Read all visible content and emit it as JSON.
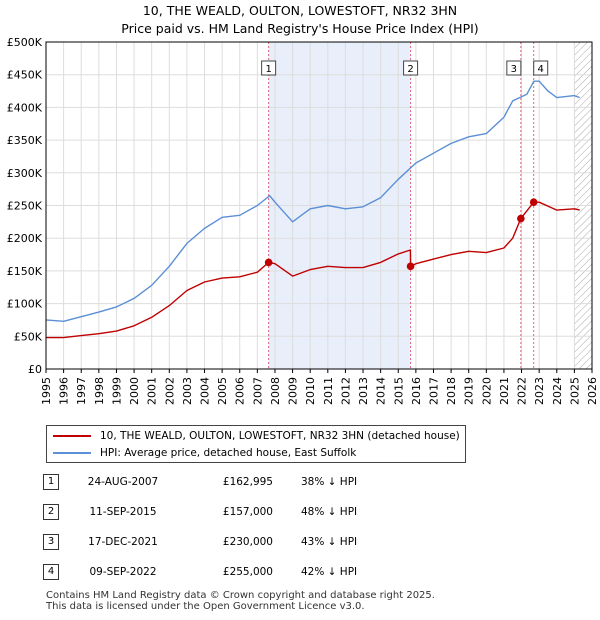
{
  "chart_data": {
    "type": "line",
    "title": "10, THE WEALD, OULTON, LOWESTOFT, NR32 3HN",
    "subtitle": "Price paid vs. HM Land Registry's House Price Index (HPI)",
    "xlim": [
      1995,
      2026
    ],
    "ylim": [
      0,
      500000
    ],
    "x_ticks": [
      "1995",
      "1996",
      "1997",
      "1998",
      "1999",
      "2000",
      "2001",
      "2002",
      "2003",
      "2004",
      "2005",
      "2006",
      "2007",
      "2008",
      "2009",
      "2010",
      "2011",
      "2012",
      "2013",
      "2014",
      "2015",
      "2016",
      "2017",
      "2018",
      "2019",
      "2020",
      "2021",
      "2022",
      "2023",
      "2024",
      "2025",
      "2026"
    ],
    "y_ticks": [
      {
        "value": 0,
        "label": "£0"
      },
      {
        "value": 50000,
        "label": "£50K"
      },
      {
        "value": 100000,
        "label": "£100K"
      },
      {
        "value": 150000,
        "label": "£150K"
      },
      {
        "value": 200000,
        "label": "£200K"
      },
      {
        "value": 250000,
        "label": "£250K"
      },
      {
        "value": 300000,
        "label": "£300K"
      },
      {
        "value": 350000,
        "label": "£350K"
      },
      {
        "value": 400000,
        "label": "£400K"
      },
      {
        "value": 450000,
        "label": "£450K"
      },
      {
        "value": 500000,
        "label": "£500K"
      }
    ],
    "series": [
      {
        "name": "10, THE WEALD, OULTON, LOWESTOFT, NR32 3HN (detached house)",
        "color": "#c00000",
        "points": [
          [
            1995,
            48000
          ],
          [
            1996,
            48000
          ],
          [
            1997,
            51000
          ],
          [
            1998,
            54000
          ],
          [
            1999,
            58000
          ],
          [
            2000,
            66000
          ],
          [
            2001,
            79000
          ],
          [
            2002,
            97000
          ],
          [
            2003,
            120000
          ],
          [
            2004,
            133000
          ],
          [
            2005,
            139000
          ],
          [
            2006,
            141000
          ],
          [
            2007,
            148000
          ],
          [
            2007.64,
            162995
          ],
          [
            2008,
            161000
          ],
          [
            2009,
            142000
          ],
          [
            2010,
            152000
          ],
          [
            2011,
            157000
          ],
          [
            2012,
            155000
          ],
          [
            2013,
            155000
          ],
          [
            2014,
            163000
          ],
          [
            2015,
            176000
          ],
          [
            2015.69,
            182000
          ],
          [
            2015.7,
            157000
          ],
          [
            2016,
            161000
          ],
          [
            2017,
            168000
          ],
          [
            2018,
            175000
          ],
          [
            2019,
            180000
          ],
          [
            2020,
            178000
          ],
          [
            2021,
            185000
          ],
          [
            2021.5,
            200000
          ],
          [
            2021.96,
            230000
          ],
          [
            2022.69,
            255000
          ],
          [
            2023,
            255000
          ],
          [
            2024,
            243000
          ],
          [
            2025,
            245000
          ],
          [
            2025.3,
            243000
          ]
        ]
      },
      {
        "name": "HPI: Average price, detached house, East Suffolk",
        "color": "#5b8fd6",
        "points": [
          [
            1995,
            75000
          ],
          [
            1996,
            73000
          ],
          [
            1997,
            80000
          ],
          [
            1998,
            87000
          ],
          [
            1999,
            95000
          ],
          [
            2000,
            108000
          ],
          [
            2001,
            128000
          ],
          [
            2002,
            157000
          ],
          [
            2003,
            192000
          ],
          [
            2004,
            215000
          ],
          [
            2005,
            232000
          ],
          [
            2006,
            235000
          ],
          [
            2007,
            250000
          ],
          [
            2007.7,
            265000
          ],
          [
            2008,
            255000
          ],
          [
            2009,
            225000
          ],
          [
            2010,
            245000
          ],
          [
            2011,
            250000
          ],
          [
            2012,
            245000
          ],
          [
            2013,
            248000
          ],
          [
            2014,
            262000
          ],
          [
            2015,
            290000
          ],
          [
            2016,
            315000
          ],
          [
            2017,
            330000
          ],
          [
            2018,
            345000
          ],
          [
            2019,
            355000
          ],
          [
            2020,
            360000
          ],
          [
            2021,
            385000
          ],
          [
            2021.5,
            410000
          ],
          [
            2022.3,
            420000
          ],
          [
            2022.7,
            440000
          ],
          [
            2023,
            440000
          ],
          [
            2023.5,
            425000
          ],
          [
            2024,
            415000
          ],
          [
            2025,
            418000
          ],
          [
            2025.3,
            415000
          ]
        ]
      }
    ],
    "sales": [
      {
        "n": "1",
        "x": 2007.64,
        "y": 162995
      },
      {
        "n": "2",
        "x": 2015.7,
        "y": 157000
      },
      {
        "n": "3",
        "x": 2021.96,
        "y": 230000
      },
      {
        "n": "4",
        "x": 2022.69,
        "y": 255000
      }
    ],
    "shaded_range": [
      2007.64,
      2015.7
    ],
    "hatched_from": 2025.0
  },
  "legend": {
    "property_label": "10, THE WEALD, OULTON, LOWESTOFT, NR32 3HN (detached house)",
    "hpi_label": "HPI: Average price, detached house, East Suffolk"
  },
  "table": [
    {
      "n": "1",
      "date": "24-AUG-2007",
      "price": "£162,995",
      "hpi": "38% ↓ HPI"
    },
    {
      "n": "2",
      "date": "11-SEP-2015",
      "price": "£157,000",
      "hpi": "48% ↓ HPI"
    },
    {
      "n": "3",
      "date": "17-DEC-2021",
      "price": "£230,000",
      "hpi": "43% ↓ HPI"
    },
    {
      "n": "4",
      "date": "09-SEP-2022",
      "price": "£255,000",
      "hpi": "42% ↓ HPI"
    }
  ],
  "footer": {
    "line1": "Contains HM Land Registry data © Crown copyright and database right 2025.",
    "line2": "This data is licensed under the Open Government Licence v3.0."
  }
}
